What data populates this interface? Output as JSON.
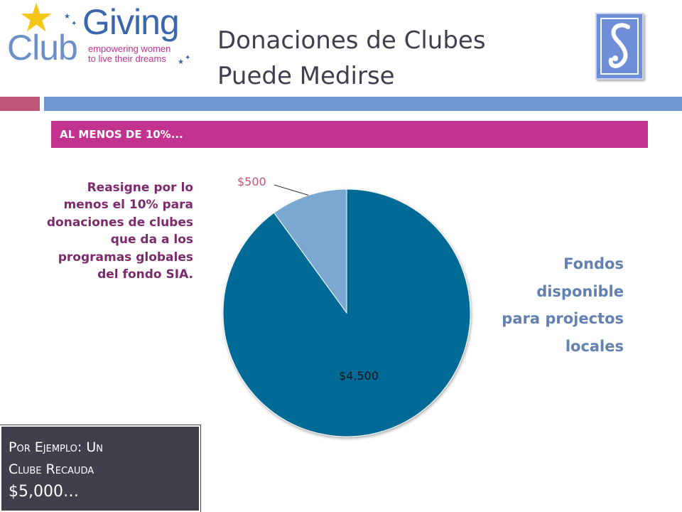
{
  "logo": {
    "club": "Club",
    "giving": "Giving",
    "tagline_1": "empowering women",
    "tagline_2": "to live their dreams"
  },
  "title": {
    "line1": "Donaciones de Clubes",
    "line2": "Puede Medirse"
  },
  "band_label": "AL MENOS DE 10%...",
  "left_text": "Reasigne por lo menos el 10% para donaciones de clubes que da a los programas globales del fondo SIA.",
  "right_text": "Fondos disponible para projectos locales",
  "example_box": {
    "line1": "Por Ejemplo: Un",
    "line2": "Clube Recauda",
    "line3": "$5,000…"
  },
  "colors": {
    "pie_large": "#006a96",
    "pie_small": "#7aa8d0",
    "band": "#c2338f"
  },
  "chart_data": {
    "type": "pie",
    "title": "",
    "slices": [
      {
        "label": "$4,500",
        "value": 4500,
        "color": "#006a96"
      },
      {
        "label": "$500",
        "value": 500,
        "color": "#7aa8d0"
      }
    ]
  }
}
